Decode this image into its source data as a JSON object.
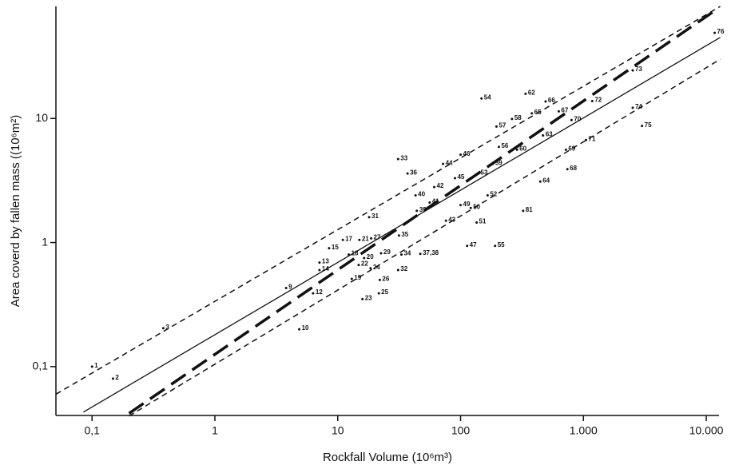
{
  "chart_data": {
    "type": "scatter",
    "x_label": "Rockfall Volume (10⁶m³)",
    "y_label": "Area coverd by fallen mass ((10⁶m²)",
    "log_x": true,
    "log_y": true,
    "color": "#111111",
    "xlim": [
      0.0508,
      12700
    ],
    "ylim": [
      0.0404,
      80
    ],
    "xticks": [
      {
        "value": 0.1,
        "label": "0,1"
      },
      1,
      10,
      100,
      {
        "value": 1000,
        "label": "1.000"
      },
      {
        "value": 10000,
        "label": "10.000"
      }
    ],
    "yticks": [
      {
        "value": 0.1,
        "label": "0,1"
      },
      1,
      10
    ],
    "points": {
      "labels": [
        "1",
        "2",
        "3",
        "10",
        "9",
        "12",
        "13",
        "14",
        "15",
        "18",
        "17",
        "21",
        "27",
        "20",
        "22",
        "24",
        "19",
        "23",
        "25",
        "26",
        "29",
        "32",
        "34",
        "35",
        "31",
        "33",
        "36",
        "37,38",
        "39",
        "40",
        "41",
        "42",
        "43",
        "44",
        "45",
        "46",
        "47",
        "49",
        "50",
        "51",
        "52",
        "53",
        "55",
        "56",
        "57",
        "58",
        "54",
        "59",
        "60",
        "81",
        "62",
        "63",
        "64",
        "65",
        "66",
        "67",
        "68",
        "69",
        "70",
        "71",
        "72",
        "73",
        "74",
        "75",
        "76"
      ],
      "x": [
        0.1,
        0.148,
        0.38,
        4.86,
        3.8,
        6.3,
        7.1,
        7.1,
        8.5,
        12.3,
        11,
        15,
        18.7,
        16.4,
        14.8,
        18.5,
        13,
        15.9,
        21.6,
        22,
        22.5,
        31,
        33,
        31.5,
        18,
        31,
        37,
        47,
        44,
        43,
        56,
        61,
        76,
        72,
        90,
        100,
        113,
        100,
        121,
        135,
        166,
        139,
        191,
        205,
        196,
        262,
        148,
        183,
        288,
        323,
        338,
        469,
        445,
        380,
        492,
        630,
        740,
        720,
        800,
        1050,
        1180,
        2520,
        2520,
        3000,
        11700
      ],
      "y": [
        0.1,
        0.08,
        0.204,
        0.2,
        0.43,
        0.39,
        0.69,
        0.6,
        0.9,
        0.8,
        1.05,
        1.05,
        1.08,
        0.75,
        0.66,
        0.62,
        0.51,
        0.35,
        0.39,
        0.5,
        0.82,
        0.6,
        0.8,
        1.14,
        1.6,
        4.7,
        3.6,
        0.81,
        1.8,
        2.4,
        2.1,
        2.8,
        1.5,
        4.3,
        3.3,
        5.1,
        0.94,
        2,
        1.9,
        1.45,
        2.4,
        3.6,
        0.94,
        5.9,
        8.6,
        9.9,
        14.5,
        4.3,
        5.6,
        1.8,
        15.8,
        7.3,
        3.1,
        11,
        13.7,
        11.4,
        3.9,
        5.6,
        9.7,
        6.7,
        13.8,
        24.4,
        12.2,
        8.7,
        49
      ]
    },
    "lines": [
      {
        "style": "solid",
        "x": [
          0.085,
          13000
        ],
        "y": [
          0.043,
          45
        ]
      },
      {
        "style": "dashed",
        "x": [
          0.0508,
          13000
        ],
        "y": [
          0.06,
          80
        ]
      },
      {
        "style": "dashed",
        "x": [
          0.2,
          13000
        ],
        "y": [
          0.04,
          30
        ]
      },
      {
        "style": "thick-dashed",
        "x": [
          0.2,
          12000
        ],
        "y": [
          0.042,
          75
        ]
      }
    ]
  }
}
